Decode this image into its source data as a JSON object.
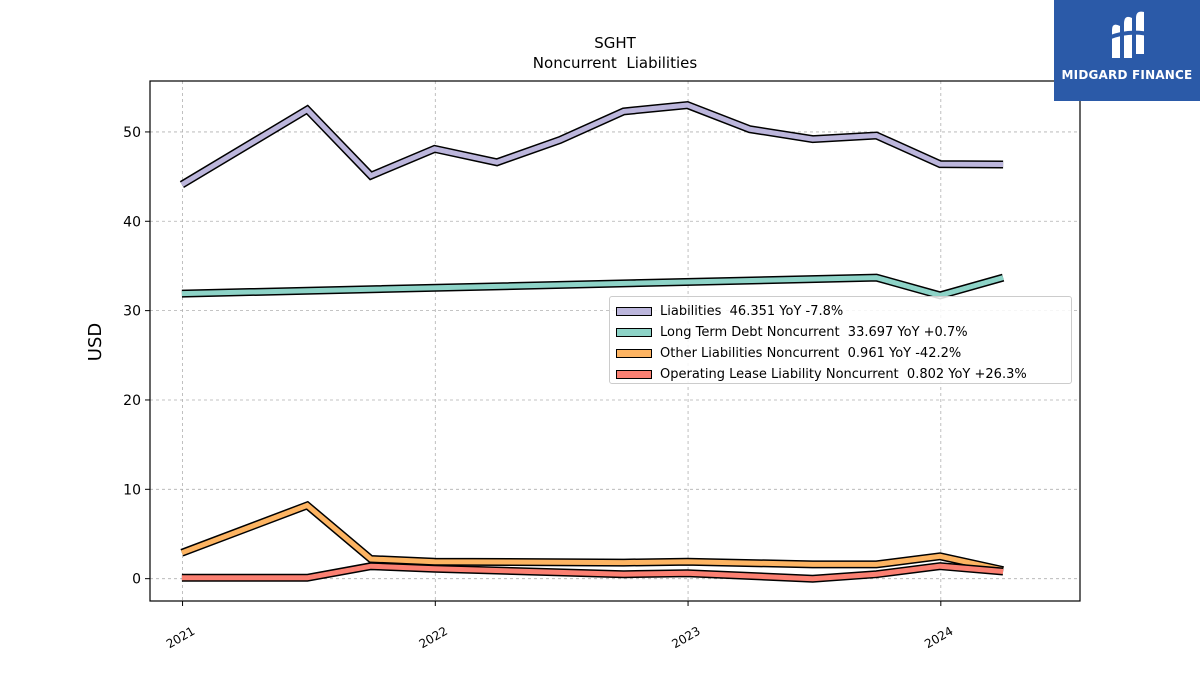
{
  "brand": {
    "name": "MIDGARD FINANCE",
    "colors": {
      "background": "#2b5aa8",
      "foreground": "#ffffff"
    },
    "icon": "mf-monogram-icon"
  },
  "chart_data": {
    "type": "line",
    "title": "SGHT",
    "subtitle": "Noncurrent  Liabilities",
    "xlabel": "",
    "ylabel": "USD",
    "x_ticks": [
      "2021",
      "2022",
      "2023",
      "2024"
    ],
    "y_ticks": [
      0,
      10,
      20,
      30,
      40,
      50
    ],
    "xlim": [
      "2020-11-15",
      "2024-07-20"
    ],
    "ylim": [
      -2.5,
      55.7
    ],
    "grid": true,
    "legend_position": "center-right",
    "x": [
      "2020-12-31",
      "2021-06-30",
      "2021-09-30",
      "2021-12-31",
      "2022-03-31",
      "2022-06-30",
      "2022-09-30",
      "2022-12-31",
      "2023-03-31",
      "2023-06-30",
      "2023-09-30",
      "2023-12-31",
      "2024-03-31"
    ],
    "series": [
      {
        "name": "Liabilities",
        "legend_label": "Liabilities  46.351 YoY -7.8%",
        "color": "#bcb6dc",
        "values": [
          44.1,
          52.5,
          45.1,
          48.1,
          46.6,
          49.1,
          52.3,
          53.0,
          50.3,
          49.2,
          49.6,
          46.4,
          46.351
        ]
      },
      {
        "name": "Long Term Debt Noncurrent",
        "legend_label": "Long Term Debt Noncurrent  33.697 YoY +0.7%",
        "color": "#8dd3c7",
        "values": [
          31.9,
          null,
          null,
          null,
          null,
          null,
          null,
          null,
          null,
          null,
          33.7,
          31.7,
          33.697
        ]
      },
      {
        "name": "Other Liabilities Noncurrent",
        "legend_label": "Other Liabilities Noncurrent  0.961 YoY -42.2%",
        "color": "#fdb462",
        "values": [
          2.9,
          8.2,
          2.2,
          1.9,
          null,
          null,
          1.8,
          1.9,
          null,
          1.6,
          1.6,
          2.5,
          0.961
        ]
      },
      {
        "name": "Operating Lease Liability Noncurrent",
        "legend_label": "Operating Lease Liability Noncurrent  0.802 YoY +26.3%",
        "color": "#fb8072",
        "values": [
          0.1,
          0.1,
          1.4,
          1.1,
          null,
          null,
          0.5,
          0.6,
          null,
          0.0,
          0.5,
          1.4,
          0.802
        ]
      }
    ]
  }
}
